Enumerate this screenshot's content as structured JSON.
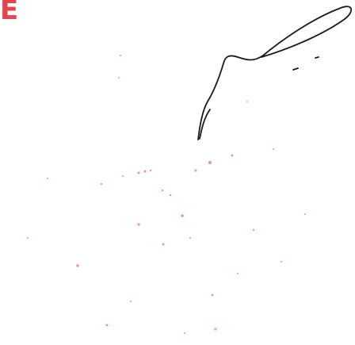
{
  "header": {
    "label": "E"
  }
}
